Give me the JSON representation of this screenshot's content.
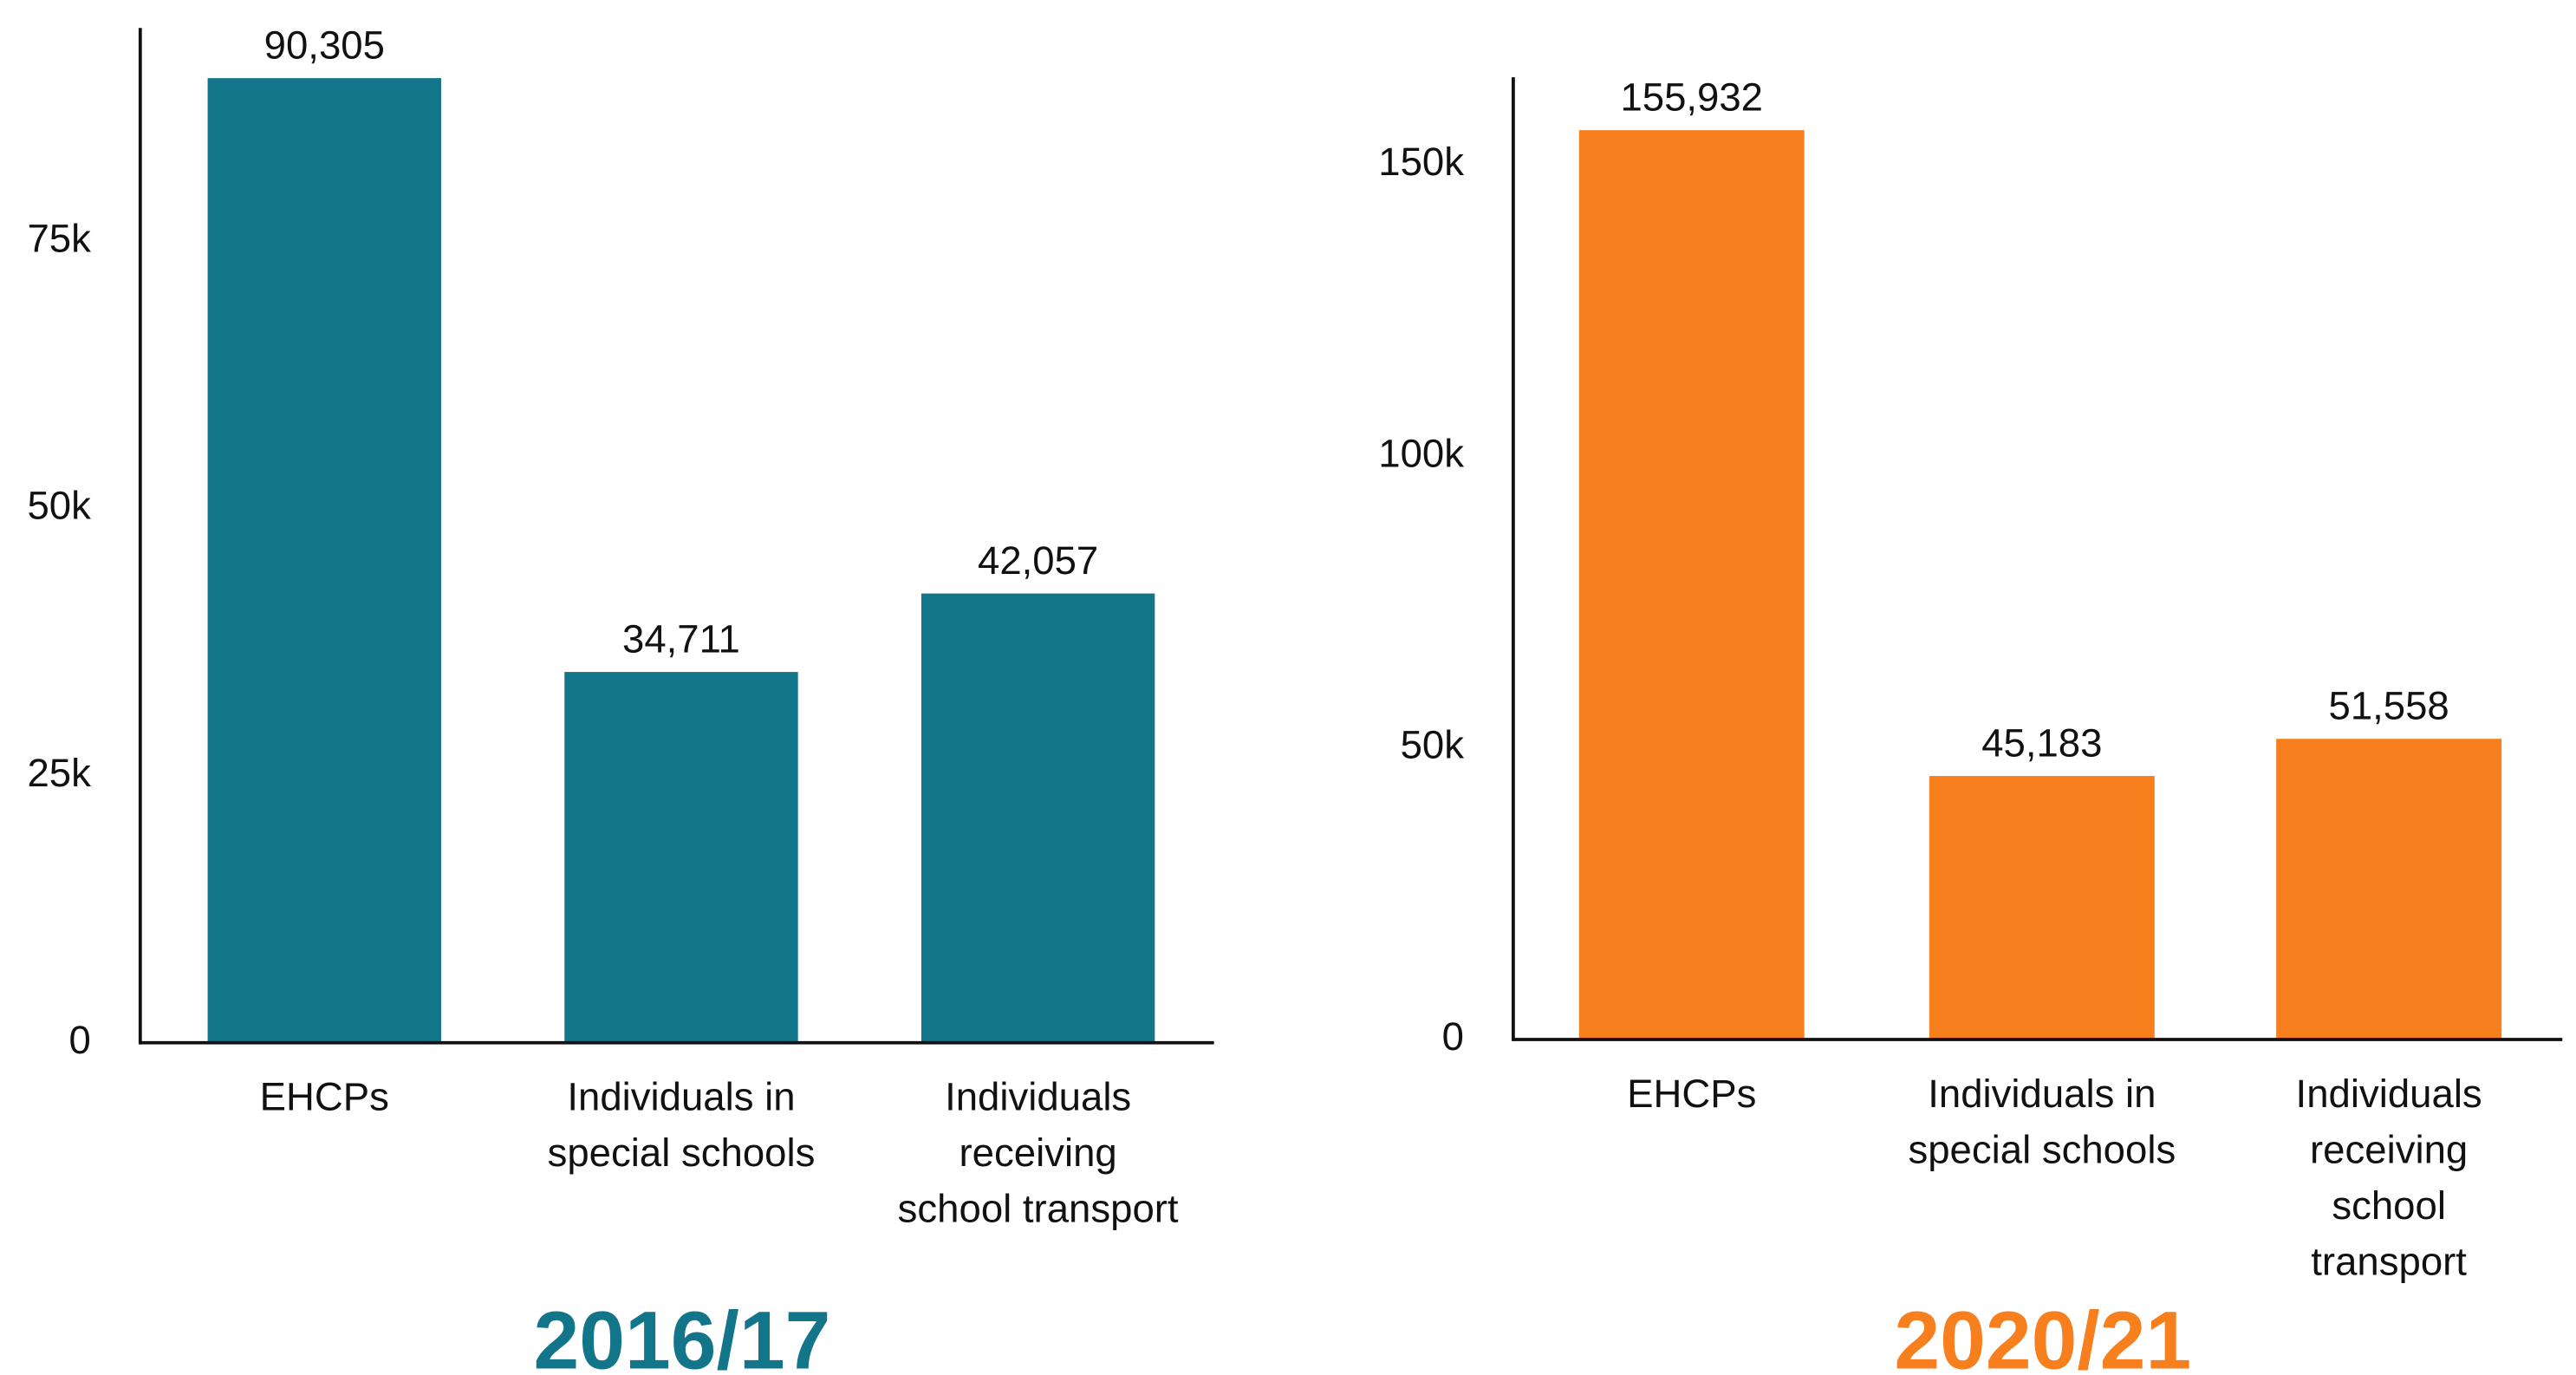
{
  "chart_data": [
    {
      "type": "bar",
      "title": "2016/17",
      "color": "#137589",
      "categories": [
        "EHCPs",
        "Individuals in\nspecial schools",
        "Individuals\nreceiving\nschool transport"
      ],
      "values": [
        90305,
        34711,
        42057
      ],
      "value_labels": [
        "90,305",
        "34,711",
        "42,057"
      ],
      "ylim": [
        0,
        95000
      ],
      "yticks": [
        0,
        {
          "value": 25000,
          "label": "25k"
        },
        {
          "value": 50000,
          "label": "50k"
        },
        {
          "value": 75000,
          "label": "75k"
        }
      ]
    },
    {
      "type": "bar",
      "title": "2020/21",
      "color": "#F77F1E",
      "categories": [
        "EHCPs",
        "Individuals in\nspecial schools",
        "Individuals\nreceiving\nschool\ntransport"
      ],
      "values": [
        155932,
        45183,
        51558
      ],
      "value_labels": [
        "155,932",
        "45,183",
        "51,558"
      ],
      "ylim": [
        0,
        165000
      ],
      "yticks": [
        0,
        {
          "value": 50000,
          "label": "50k"
        },
        {
          "value": 100000,
          "label": "100k"
        },
        {
          "value": 150000,
          "label": "150k"
        }
      ]
    }
  ]
}
